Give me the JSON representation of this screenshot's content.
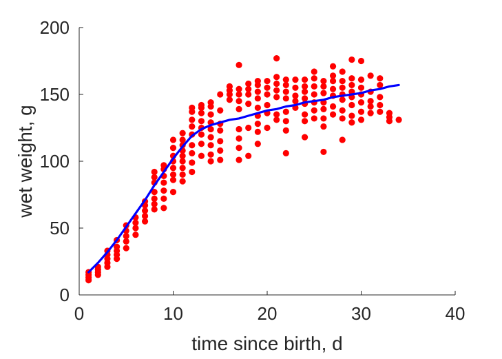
{
  "chart_data": {
    "type": "scatter",
    "title": "",
    "xlabel": "time since birth, d",
    "ylabel": "wet weight, g",
    "xlim": [
      0,
      40
    ],
    "ylim": [
      0,
      200
    ],
    "xticks": [
      "0",
      "10",
      "20",
      "30",
      "40"
    ],
    "yticks": [
      "0",
      "50",
      "100",
      "150",
      "200"
    ],
    "grid": false,
    "legend": "none",
    "series": [
      {
        "type": "scatter",
        "color": "#ff0000",
        "points": [
          [
            1,
            11
          ],
          [
            1,
            13
          ],
          [
            1,
            15
          ],
          [
            1,
            17
          ],
          [
            2,
            15
          ],
          [
            2,
            17
          ],
          [
            2,
            19
          ],
          [
            2,
            21
          ],
          [
            3,
            21
          ],
          [
            3,
            24
          ],
          [
            3,
            27
          ],
          [
            3,
            30
          ],
          [
            3,
            33
          ],
          [
            4,
            27
          ],
          [
            4,
            30
          ],
          [
            4,
            33
          ],
          [
            4,
            36
          ],
          [
            4,
            41
          ],
          [
            5,
            35
          ],
          [
            5,
            40
          ],
          [
            5,
            44
          ],
          [
            5,
            48
          ],
          [
            5,
            52
          ],
          [
            6,
            45
          ],
          [
            6,
            50
          ],
          [
            6,
            54
          ],
          [
            6,
            58
          ],
          [
            7,
            55
          ],
          [
            7,
            59
          ],
          [
            7,
            63
          ],
          [
            7,
            67
          ],
          [
            7,
            70
          ],
          [
            8,
            64
          ],
          [
            8,
            68
          ],
          [
            8,
            72
          ],
          [
            8,
            77
          ],
          [
            8,
            84
          ],
          [
            8,
            88
          ],
          [
            8,
            92
          ],
          [
            9,
            65
          ],
          [
            9,
            72
          ],
          [
            9,
            78
          ],
          [
            9,
            84
          ],
          [
            9,
            89
          ],
          [
            9,
            94
          ],
          [
            9,
            97
          ],
          [
            10,
            77
          ],
          [
            10,
            86
          ],
          [
            10,
            90
          ],
          [
            10,
            95
          ],
          [
            10,
            100
          ],
          [
            10,
            104
          ],
          [
            10,
            110
          ],
          [
            10,
            116
          ],
          [
            11,
            85
          ],
          [
            11,
            90
          ],
          [
            11,
            95
          ],
          [
            11,
            100
          ],
          [
            11,
            104
          ],
          [
            11,
            108
          ],
          [
            11,
            112
          ],
          [
            11,
            116
          ],
          [
            11,
            121
          ],
          [
            12,
            92
          ],
          [
            12,
            99
          ],
          [
            12,
            106
          ],
          [
            12,
            112
          ],
          [
            12,
            120
          ],
          [
            12,
            126
          ],
          [
            12,
            131
          ],
          [
            12,
            137
          ],
          [
            12,
            140
          ],
          [
            13,
            104
          ],
          [
            13,
            113
          ],
          [
            13,
            120
          ],
          [
            13,
            125
          ],
          [
            13,
            130
          ],
          [
            13,
            136
          ],
          [
            13,
            140
          ],
          [
            13,
            142
          ],
          [
            14,
            100
          ],
          [
            14,
            105
          ],
          [
            14,
            112
          ],
          [
            14,
            118
          ],
          [
            14,
            124
          ],
          [
            14,
            129
          ],
          [
            14,
            135
          ],
          [
            14,
            141
          ],
          [
            14,
            144
          ],
          [
            15,
            101
          ],
          [
            15,
            108
          ],
          [
            15,
            115
          ],
          [
            15,
            123
          ],
          [
            15,
            128
          ],
          [
            15,
            138
          ],
          [
            15,
            150
          ],
          [
            16,
            146
          ],
          [
            16,
            150
          ],
          [
            16,
            153
          ],
          [
            16,
            156
          ],
          [
            17,
            101
          ],
          [
            17,
            110
          ],
          [
            17,
            117
          ],
          [
            17,
            124
          ],
          [
            17,
            139
          ],
          [
            17,
            145
          ],
          [
            17,
            150
          ],
          [
            17,
            154
          ],
          [
            17,
            172
          ],
          [
            18,
            104
          ],
          [
            18,
            125
          ],
          [
            18,
            143
          ],
          [
            18,
            150
          ],
          [
            18,
            154
          ],
          [
            18,
            158
          ],
          [
            19,
            113
          ],
          [
            19,
            122
          ],
          [
            19,
            128
          ],
          [
            19,
            134
          ],
          [
            19,
            140
          ],
          [
            19,
            147
          ],
          [
            19,
            152
          ],
          [
            19,
            157
          ],
          [
            19,
            160
          ],
          [
            20,
            125
          ],
          [
            20,
            136
          ],
          [
            20,
            142
          ],
          [
            20,
            150
          ],
          [
            20,
            155
          ],
          [
            20,
            160
          ],
          [
            21,
            131
          ],
          [
            21,
            135
          ],
          [
            21,
            148
          ],
          [
            21,
            153
          ],
          [
            21,
            158
          ],
          [
            21,
            163
          ],
          [
            21,
            177
          ],
          [
            22,
            106
          ],
          [
            22,
            123
          ],
          [
            22,
            130
          ],
          [
            22,
            137
          ],
          [
            22,
            147
          ],
          [
            22,
            152
          ],
          [
            22,
            157
          ],
          [
            22,
            161
          ],
          [
            23,
            140
          ],
          [
            23,
            145
          ],
          [
            23,
            149
          ],
          [
            23,
            155
          ],
          [
            23,
            161
          ],
          [
            24,
            118
          ],
          [
            24,
            130
          ],
          [
            24,
            135
          ],
          [
            24,
            143
          ],
          [
            24,
            147
          ],
          [
            24,
            152
          ],
          [
            24,
            156
          ],
          [
            24,
            161
          ],
          [
            25,
            132
          ],
          [
            25,
            138
          ],
          [
            25,
            144
          ],
          [
            25,
            150
          ],
          [
            25,
            156
          ],
          [
            25,
            162
          ],
          [
            25,
            167
          ],
          [
            26,
            107
          ],
          [
            26,
            126
          ],
          [
            26,
            132
          ],
          [
            26,
            139
          ],
          [
            26,
            144
          ],
          [
            26,
            151
          ],
          [
            26,
            156
          ],
          [
            26,
            160
          ],
          [
            27,
            135
          ],
          [
            27,
            141
          ],
          [
            27,
            149
          ],
          [
            27,
            154
          ],
          [
            27,
            160
          ],
          [
            27,
            164
          ],
          [
            27,
            171
          ],
          [
            28,
            116
          ],
          [
            28,
            132
          ],
          [
            28,
            138
          ],
          [
            28,
            146
          ],
          [
            28,
            150
          ],
          [
            28,
            155
          ],
          [
            28,
            160
          ],
          [
            28,
            167
          ],
          [
            29,
            129
          ],
          [
            29,
            134
          ],
          [
            29,
            142
          ],
          [
            29,
            148
          ],
          [
            29,
            152
          ],
          [
            29,
            157
          ],
          [
            29,
            162
          ],
          [
            29,
            176
          ],
          [
            30,
            131
          ],
          [
            30,
            137
          ],
          [
            30,
            144
          ],
          [
            30,
            150
          ],
          [
            30,
            155
          ],
          [
            30,
            161
          ],
          [
            30,
            175
          ],
          [
            31,
            136
          ],
          [
            31,
            141
          ],
          [
            31,
            145
          ],
          [
            31,
            152
          ],
          [
            31,
            164
          ],
          [
            32,
            137
          ],
          [
            32,
            142
          ],
          [
            32,
            148
          ],
          [
            32,
            157
          ],
          [
            32,
            162
          ],
          [
            33,
            130
          ],
          [
            33,
            133
          ],
          [
            33,
            136
          ],
          [
            34,
            131
          ]
        ]
      },
      {
        "type": "line",
        "color": "#0000ff",
        "points": [
          [
            1,
            17
          ],
          [
            2,
            24
          ],
          [
            3,
            32
          ],
          [
            4,
            41
          ],
          [
            5,
            51
          ],
          [
            6,
            61
          ],
          [
            7,
            71
          ],
          [
            8,
            82
          ],
          [
            9,
            92
          ],
          [
            10,
            102
          ],
          [
            11,
            111
          ],
          [
            12,
            119
          ],
          [
            13,
            124
          ],
          [
            14,
            127
          ],
          [
            15,
            129
          ],
          [
            16,
            131
          ],
          [
            17,
            132
          ],
          [
            18,
            134
          ],
          [
            19,
            136
          ],
          [
            20,
            138
          ],
          [
            21,
            139
          ],
          [
            22,
            141
          ],
          [
            23,
            142
          ],
          [
            24,
            144
          ],
          [
            25,
            145
          ],
          [
            26,
            146
          ],
          [
            27,
            148
          ],
          [
            28,
            149
          ],
          [
            29,
            150
          ],
          [
            30,
            151
          ],
          [
            31,
            153
          ],
          [
            32,
            154
          ],
          [
            33,
            156
          ],
          [
            34,
            157
          ]
        ]
      }
    ]
  }
}
